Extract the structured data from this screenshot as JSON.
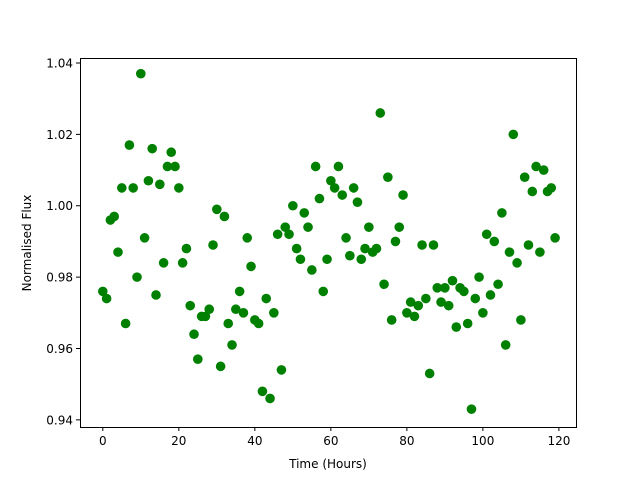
{
  "chart_data": {
    "type": "scatter",
    "title": "",
    "xlabel": "Time (Hours)",
    "ylabel": "Normalised Flux",
    "xlim": [
      -6,
      124.5
    ],
    "ylim": [
      0.938,
      1.0414
    ],
    "xticks": [
      0,
      20,
      40,
      60,
      80,
      100,
      120
    ],
    "xtick_labels": [
      "0",
      "20",
      "40",
      "60",
      "80",
      "100",
      "120"
    ],
    "yticks": [
      0.94,
      0.96,
      0.98,
      1.0,
      1.02,
      1.04
    ],
    "ytick_labels": [
      "0.94",
      "0.96",
      "0.98",
      "1.00",
      "1.02",
      "1.04"
    ],
    "grid": false,
    "marker_color": "#008000",
    "x": [
      0,
      1,
      2,
      3,
      4,
      5,
      6,
      7,
      8,
      9,
      10,
      11,
      12,
      13,
      14,
      15,
      16,
      17,
      18,
      19,
      20,
      21,
      22,
      23,
      24,
      25,
      26,
      27,
      28,
      29,
      30,
      31,
      32,
      33,
      34,
      35,
      36,
      37,
      38,
      39,
      40,
      41,
      42,
      43,
      44,
      45,
      46,
      47,
      48,
      49,
      50,
      51,
      52,
      53,
      54,
      55,
      56,
      57,
      58,
      59,
      60,
      61,
      62,
      63,
      64,
      65,
      66,
      67,
      68,
      69,
      70,
      71,
      72,
      73,
      74,
      75,
      76,
      77,
      78,
      79,
      80,
      81,
      82,
      83,
      84,
      85,
      86,
      87,
      88,
      89,
      90,
      91,
      92,
      93,
      94,
      95,
      96,
      97,
      98,
      99,
      100,
      101,
      102,
      103,
      104,
      105,
      106,
      107,
      108,
      109,
      110,
      111,
      112,
      113,
      114,
      115,
      116,
      117,
      118,
      119
    ],
    "y": [
      0.976,
      0.974,
      0.996,
      0.997,
      0.987,
      1.005,
      0.967,
      1.017,
      1.005,
      0.98,
      1.037,
      0.991,
      1.007,
      1.016,
      0.975,
      1.006,
      0.984,
      1.011,
      1.015,
      1.011,
      1.005,
      0.984,
      0.988,
      0.972,
      0.964,
      0.957,
      0.969,
      0.969,
      0.971,
      0.989,
      0.999,
      0.955,
      0.997,
      0.967,
      0.961,
      0.971,
      0.976,
      0.97,
      0.991,
      0.983,
      0.968,
      0.967,
      0.948,
      0.974,
      0.946,
      0.97,
      0.992,
      0.954,
      0.994,
      0.992,
      1.0,
      0.988,
      0.985,
      0.998,
      0.994,
      0.982,
      1.011,
      1.002,
      0.976,
      0.985,
      1.007,
      1.005,
      1.011,
      1.003,
      0.991,
      0.986,
      1.005,
      1.001,
      0.985,
      0.988,
      0.994,
      0.987,
      0.988,
      1.026,
      0.978,
      1.008,
      0.968,
      0.99,
      0.994,
      1.003,
      0.97,
      0.973,
      0.969,
      0.972,
      0.989,
      0.974,
      0.953,
      0.989,
      0.977,
      0.973,
      0.977,
      0.972,
      0.979,
      0.966,
      0.977,
      0.976,
      0.967,
      0.943,
      0.974,
      0.98,
      0.97,
      0.992,
      0.975,
      0.99,
      0.978,
      0.998,
      0.961,
      0.987,
      1.02,
      0.984,
      0.968,
      1.008,
      0.989,
      1.004,
      1.011,
      0.987,
      1.01,
      1.004,
      1.005,
      0.991
    ]
  }
}
